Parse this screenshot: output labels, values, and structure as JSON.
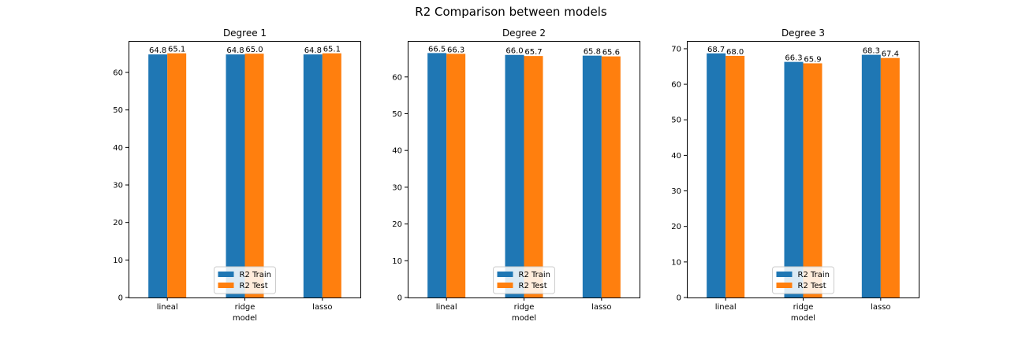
{
  "figure": {
    "suptitle": "R2 Comparison between models"
  },
  "colors": {
    "train": "#1f77b4",
    "test": "#ff7f0e"
  },
  "chart_data": [
    {
      "type": "bar",
      "title": "Degree 1",
      "xlabel": "model",
      "ylabel": "",
      "categories": [
        "lineal",
        "ridge",
        "lasso"
      ],
      "series": [
        {
          "name": "R2 Train",
          "values": [
            64.8,
            64.8,
            64.8
          ],
          "labels": [
            "64.8",
            "64.8",
            "64.8"
          ]
        },
        {
          "name": "R2 Test",
          "values": [
            65.1,
            65.0,
            65.1
          ],
          "labels": [
            "65.1",
            "65.0",
            "65.1"
          ]
        }
      ],
      "ylim": [
        0,
        68.4
      ],
      "yticks": [
        0,
        10,
        20,
        30,
        40,
        50,
        60
      ],
      "legend": "lower center",
      "grid": false
    },
    {
      "type": "bar",
      "title": "Degree 2",
      "xlabel": "model",
      "ylabel": "",
      "categories": [
        "lineal",
        "ridge",
        "lasso"
      ],
      "series": [
        {
          "name": "R2 Train",
          "values": [
            66.5,
            66.0,
            65.8
          ],
          "labels": [
            "66.5",
            "66.0",
            "65.8"
          ]
        },
        {
          "name": "R2 Test",
          "values": [
            66.3,
            65.7,
            65.6
          ],
          "labels": [
            "66.3",
            "65.7",
            "65.6"
          ]
        }
      ],
      "ylim": [
        0,
        69.8
      ],
      "yticks": [
        0,
        10,
        20,
        30,
        40,
        50,
        60
      ],
      "legend": "lower center",
      "grid": false
    },
    {
      "type": "bar",
      "title": "Degree 3",
      "xlabel": "model",
      "ylabel": "",
      "categories": [
        "lineal",
        "ridge",
        "lasso"
      ],
      "series": [
        {
          "name": "R2 Train",
          "values": [
            68.7,
            66.3,
            68.3
          ],
          "labels": [
            "68.7",
            "66.3",
            "68.3"
          ]
        },
        {
          "name": "R2 Test",
          "values": [
            68.0,
            65.9,
            67.4
          ],
          "labels": [
            "68.0",
            "65.9",
            "67.4"
          ]
        }
      ],
      "ylim": [
        0,
        72.2
      ],
      "yticks": [
        0,
        10,
        20,
        30,
        40,
        50,
        60,
        70
      ],
      "legend": "lower center",
      "grid": false
    }
  ]
}
